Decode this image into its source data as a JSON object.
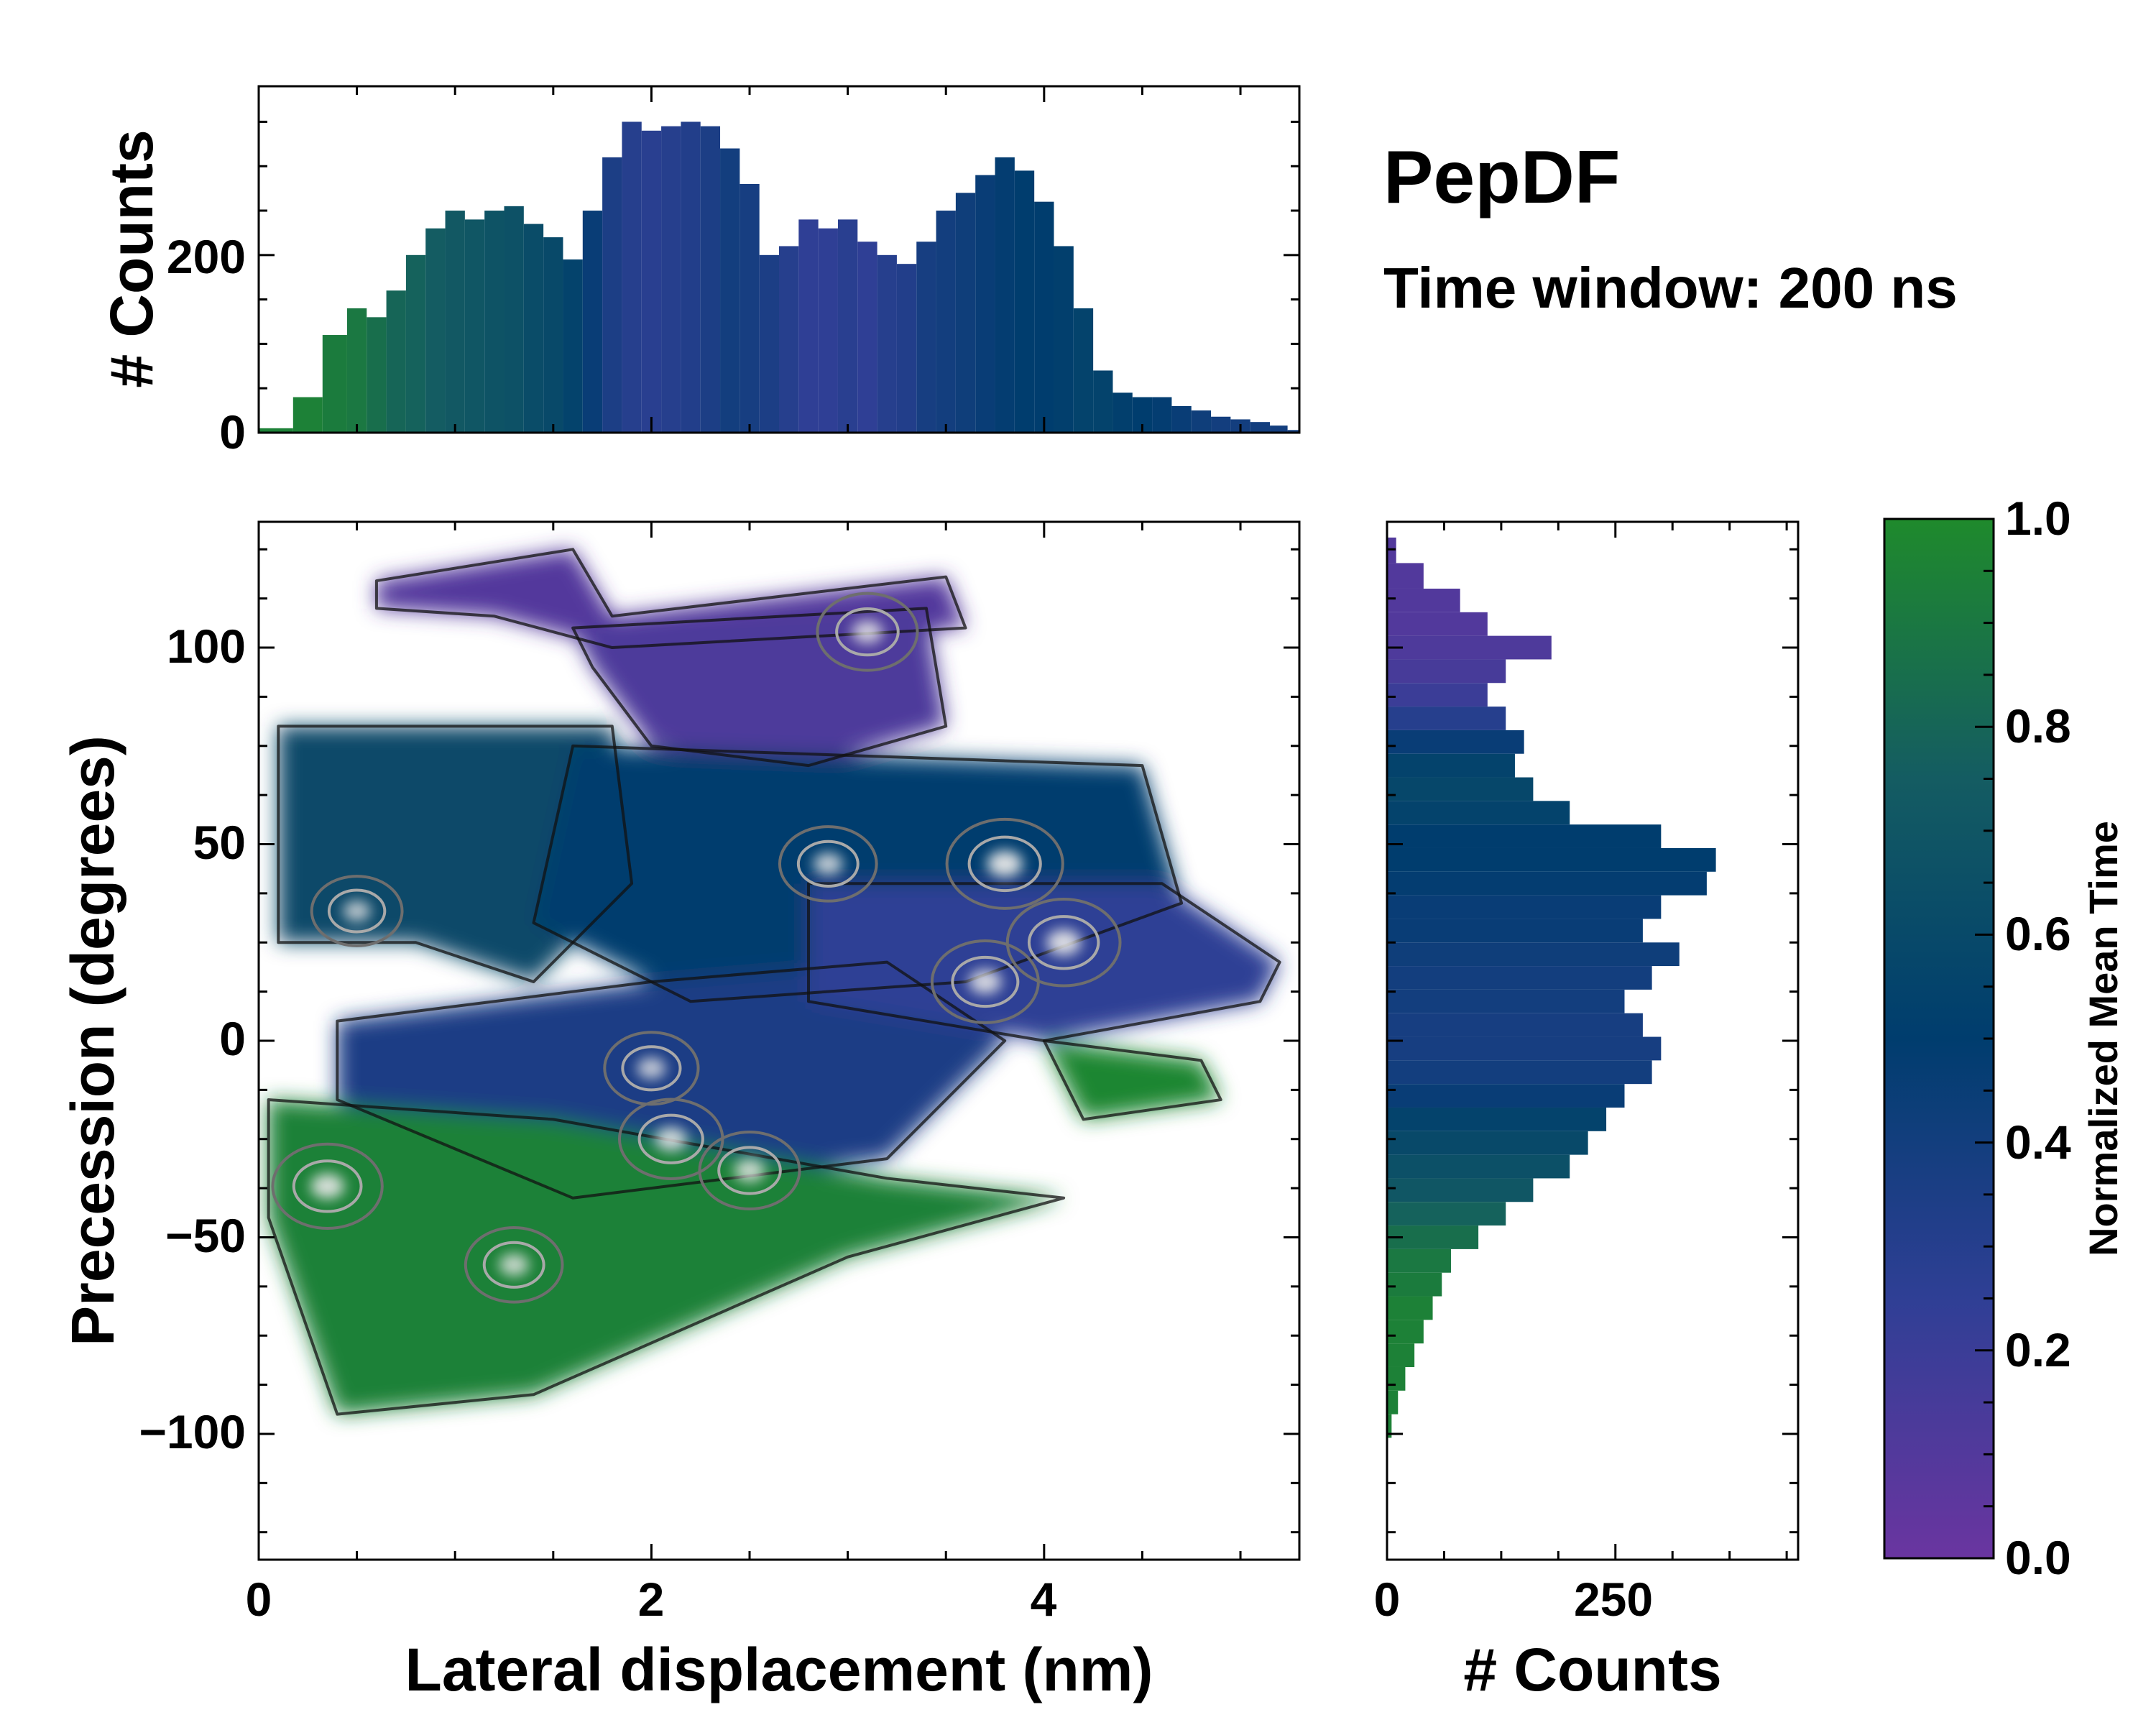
{
  "chart_data": {
    "type": "heatmap",
    "title": "PepDF",
    "subtitle": "Time window: 200 ns",
    "xlabel": "Lateral displacement (nm)",
    "ylabel": "Precession (degrees)",
    "xlim": [
      0,
      5.3
    ],
    "ylim": [
      -132,
      132
    ],
    "xticks": [
      "0",
      "2",
      "4"
    ],
    "yticks": [
      "100",
      "50",
      "0",
      "−50",
      "−100"
    ],
    "colorbar": {
      "label": "Normalized Mean Time",
      "range": [
        0.0,
        1.0
      ],
      "ticks": [
        "0.0",
        "0.2",
        "0.4",
        "0.6",
        "0.8",
        "1.0"
      ],
      "colors": [
        "#6a35a0",
        "#2f3f95",
        "#003d6e",
        "#145c62",
        "#1f8a2c"
      ]
    },
    "top_marginal": {
      "ylabel": "# Counts",
      "yticks": [
        "0",
        "200"
      ],
      "ylim": [
        0,
        390
      ],
      "x": [
        0.1,
        0.25,
        0.4,
        0.5,
        0.6,
        0.7,
        0.8,
        0.9,
        1.0,
        1.1,
        1.2,
        1.3,
        1.4,
        1.5,
        1.6,
        1.7,
        1.8,
        1.9,
        2.0,
        2.1,
        2.2,
        2.3,
        2.4,
        2.5,
        2.6,
        2.7,
        2.8,
        2.9,
        3.0,
        3.1,
        3.2,
        3.3,
        3.4,
        3.5,
        3.6,
        3.7,
        3.8,
        3.9,
        4.0,
        4.1,
        4.2,
        4.3,
        4.4,
        4.5,
        4.6,
        4.7,
        4.8,
        4.9,
        5.0,
        5.1,
        5.2,
        5.28
      ],
      "values": [
        5,
        40,
        110,
        140,
        130,
        160,
        200,
        230,
        250,
        240,
        250,
        255,
        235,
        220,
        195,
        250,
        310,
        350,
        340,
        345,
        350,
        345,
        320,
        280,
        200,
        210,
        240,
        230,
        240,
        215,
        200,
        190,
        215,
        250,
        270,
        290,
        310,
        295,
        260,
        210,
        140,
        70,
        45,
        40,
        40,
        30,
        25,
        18,
        15,
        12,
        8,
        3
      ],
      "norm_time": [
        0.95,
        0.95,
        0.92,
        0.9,
        0.85,
        0.8,
        0.78,
        0.75,
        0.72,
        0.7,
        0.68,
        0.66,
        0.62,
        0.6,
        0.55,
        0.45,
        0.35,
        0.3,
        0.28,
        0.3,
        0.32,
        0.35,
        0.4,
        0.38,
        0.35,
        0.3,
        0.25,
        0.25,
        0.28,
        0.25,
        0.3,
        0.32,
        0.38,
        0.4,
        0.42,
        0.45,
        0.48,
        0.5,
        0.5,
        0.52,
        0.55,
        0.55,
        0.52,
        0.5,
        0.48,
        0.45,
        0.42,
        0.4,
        0.4,
        0.4,
        0.4,
        0.4
      ]
    },
    "right_marginal": {
      "xlabel": "# Counts",
      "xticks": [
        "0",
        "250"
      ],
      "xlim": [
        0,
        450
      ],
      "y": [
        125,
        118,
        112,
        106,
        100,
        94,
        88,
        82,
        76,
        70,
        64,
        58,
        52,
        46,
        40,
        34,
        28,
        22,
        16,
        10,
        4,
        -2,
        -8,
        -14,
        -20,
        -26,
        -32,
        -38,
        -44,
        -50,
        -56,
        -62,
        -68,
        -74,
        -80,
        -86,
        -92,
        -98
      ],
      "values": [
        10,
        40,
        80,
        110,
        180,
        130,
        110,
        130,
        150,
        140,
        160,
        200,
        300,
        360,
        350,
        300,
        280,
        320,
        290,
        260,
        280,
        300,
        290,
        260,
        240,
        220,
        200,
        160,
        130,
        100,
        70,
        60,
        50,
        40,
        30,
        20,
        12,
        5
      ],
      "norm_time": [
        0.1,
        0.1,
        0.1,
        0.1,
        0.12,
        0.15,
        0.2,
        0.3,
        0.45,
        0.55,
        0.58,
        0.55,
        0.5,
        0.5,
        0.48,
        0.45,
        0.45,
        0.42,
        0.4,
        0.4,
        0.38,
        0.38,
        0.4,
        0.45,
        0.55,
        0.6,
        0.65,
        0.7,
        0.78,
        0.85,
        0.9,
        0.92,
        0.95,
        0.95,
        0.95,
        0.95,
        0.95,
        0.95
      ]
    },
    "regions": [
      {
        "x": [
          0.6,
          1.6,
          1.8,
          3.5,
          3.6,
          1.8,
          1.2,
          0.6
        ],
        "y": [
          117,
          125,
          108,
          118,
          105,
          100,
          108,
          110
        ],
        "norm_time": 0.1
      },
      {
        "x": [
          1.6,
          3.4,
          3.5,
          2.8,
          2.0,
          1.7
        ],
        "y": [
          105,
          110,
          80,
          70,
          75,
          95
        ],
        "norm_time": 0.12
      },
      {
        "x": [
          0.1,
          1.8,
          1.9,
          1.4,
          0.8,
          0.1
        ],
        "y": [
          80,
          80,
          40,
          15,
          25,
          25
        ],
        "norm_time": 0.6
      },
      {
        "x": [
          1.6,
          4.5,
          4.7,
          3.6,
          2.2,
          1.4
        ],
        "y": [
          75,
          70,
          35,
          15,
          10,
          30
        ],
        "norm_time": 0.5
      },
      {
        "x": [
          0.4,
          2.0,
          3.2,
          3.8,
          3.2,
          1.6,
          0.4
        ],
        "y": [
          5,
          15,
          20,
          0,
          -30,
          -40,
          -15
        ],
        "norm_time": 0.35
      },
      {
        "x": [
          2.8,
          4.6,
          5.2,
          5.1,
          4.0,
          2.8
        ],
        "y": [
          40,
          40,
          20,
          10,
          0,
          10
        ],
        "norm_time": 0.25
      },
      {
        "x": [
          0.05,
          1.5,
          3.2,
          4.1,
          3.0,
          1.4,
          0.4,
          0.05
        ],
        "y": [
          -15,
          -20,
          -35,
          -40,
          -55,
          -90,
          -95,
          -45
        ],
        "norm_time": 0.95
      },
      {
        "x": [
          4.0,
          4.8,
          4.9,
          4.2
        ],
        "y": [
          0,
          -5,
          -15,
          -20
        ],
        "norm_time": 0.98
      }
    ],
    "hotspots": [
      {
        "x": 3.8,
        "y": 45,
        "intensity": 1.0
      },
      {
        "x": 4.1,
        "y": 25,
        "intensity": 0.95
      },
      {
        "x": 3.7,
        "y": 15,
        "intensity": 0.85
      },
      {
        "x": 0.35,
        "y": -37,
        "intensity": 0.9
      },
      {
        "x": 2.1,
        "y": -25,
        "intensity": 0.8
      },
      {
        "x": 2.5,
        "y": -33,
        "intensity": 0.75
      },
      {
        "x": 2.9,
        "y": 45,
        "intensity": 0.7
      },
      {
        "x": 3.1,
        "y": 104,
        "intensity": 0.75
      },
      {
        "x": 1.3,
        "y": -57,
        "intensity": 0.7
      },
      {
        "x": 0.5,
        "y": 33,
        "intensity": 0.6
      },
      {
        "x": 2.0,
        "y": -7,
        "intensity": 0.65
      }
    ]
  }
}
